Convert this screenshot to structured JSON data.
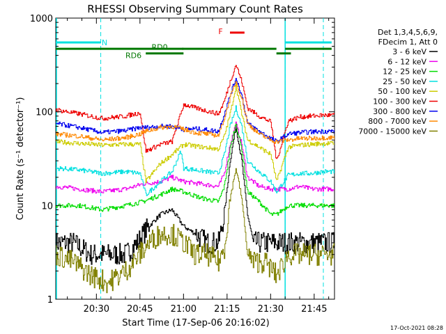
{
  "chart_data": {
    "type": "line",
    "title": "RHESSI Observing Summary Count Rates",
    "xlabel": "Start Time (17-Sep-06 20:16:02)",
    "ylabel": "Count Rate (s⁻¹ detector⁻¹)",
    "yscale": "log",
    "ylim": [
      1,
      1000
    ],
    "xlim_minutes": [
      0,
      96
    ],
    "x_unit": "minutes after 20:16:02",
    "y_ticks": [
      "1",
      "10",
      "100",
      "1000"
    ],
    "x_ticks": [
      "20:30",
      "20:45",
      "21:00",
      "21:15",
      "21:30",
      "21:45"
    ],
    "x_tick_minutes": [
      14,
      29,
      44,
      59,
      74,
      89
    ],
    "footer_date": "17-Oct-2021 08:28",
    "legend_header": [
      "Det 1,3,4,5,6,9,",
      "FDecim 1, Att 0"
    ],
    "flags": {
      "N": {
        "label": "N",
        "color": "#00e0e0",
        "segments": [
          [
            0,
            15.5
          ],
          [
            79,
            95
          ]
        ],
        "level": 550,
        "dashed_edges": [
          15.5,
          79
        ]
      },
      "RD0": {
        "label": "RD0",
        "color": "#007700",
        "segments": [
          [
            0,
            44
          ],
          [
            43.5,
            76
          ],
          [
            79,
            95
          ]
        ],
        "level": 470
      },
      "RD6": {
        "label": "RD6",
        "color": "#007700",
        "segments": [
          [
            31,
            44
          ],
          [
            76,
            81
          ]
        ],
        "level": 420
      },
      "F": {
        "label": "F",
        "color": "#ee0000",
        "segments": [
          [
            60,
            65
          ]
        ],
        "level": 700
      }
    },
    "series": [
      {
        "name": "3 - 6 keV",
        "color": "#000000",
        "x": [
          0,
          6,
          12,
          18,
          24,
          28,
          32,
          36,
          40,
          44,
          48,
          52,
          56,
          58,
          60,
          62,
          64,
          66,
          68,
          72,
          76,
          80,
          84,
          88,
          92,
          95
        ],
        "y": [
          4,
          4,
          3,
          3,
          3,
          4,
          6,
          8,
          9,
          6,
          5,
          4,
          4,
          8,
          30,
          70,
          30,
          8,
          4,
          4,
          4,
          4,
          4,
          4,
          4,
          4
        ]
      },
      {
        "name": "6 - 12 keV",
        "color": "#ee00ee",
        "x": [
          0,
          8,
          16,
          24,
          30,
          36,
          40,
          44,
          50,
          56,
          58,
          60,
          62,
          64,
          66,
          70,
          74,
          76,
          80,
          84,
          88,
          92,
          95
        ],
        "y": [
          16,
          15,
          14,
          15,
          17,
          18,
          20,
          18,
          17,
          16,
          22,
          45,
          75,
          45,
          20,
          16,
          15,
          15,
          15,
          16,
          15,
          15,
          15
        ]
      },
      {
        "name": "12 - 25 keV",
        "color": "#00dd00",
        "x": [
          0,
          8,
          16,
          24,
          30,
          36,
          40,
          44,
          50,
          56,
          58,
          60,
          62,
          64,
          66,
          70,
          74,
          76,
          80,
          84,
          88,
          92,
          95
        ],
        "y": [
          10,
          10,
          9,
          10,
          11,
          13,
          15,
          14,
          12,
          11,
          16,
          40,
          75,
          40,
          14,
          11,
          8,
          8,
          10,
          10,
          10,
          10,
          10
        ]
      },
      {
        "name": "25 - 50 keV",
        "color": "#00e0e0",
        "x": [
          0,
          8,
          16,
          24,
          29,
          31,
          36,
          40,
          43,
          44,
          48,
          56,
          58,
          60,
          62,
          64,
          66,
          70,
          74,
          76,
          80,
          84,
          88,
          92,
          95
        ],
        "y": [
          25,
          24,
          22,
          23,
          22,
          13,
          18,
          23,
          38,
          25,
          24,
          22,
          35,
          70,
          110,
          70,
          30,
          23,
          18,
          14,
          21,
          22,
          22,
          23,
          23
        ]
      },
      {
        "name": "50 - 100 keV",
        "color": "#cccc00",
        "x": [
          0,
          8,
          16,
          24,
          29,
          31,
          36,
          40,
          44,
          48,
          56,
          58,
          60,
          62,
          64,
          66,
          70,
          74,
          76,
          80,
          84,
          88,
          92,
          95
        ],
        "y": [
          48,
          46,
          44,
          45,
          45,
          18,
          28,
          35,
          45,
          43,
          40,
          55,
          95,
          190,
          95,
          50,
          42,
          35,
          18,
          42,
          44,
          45,
          46,
          46
        ]
      },
      {
        "name": "100 - 300 keV",
        "color": "#ee0000",
        "x": [
          0,
          8,
          16,
          24,
          29,
          31,
          36,
          40,
          44,
          48,
          56,
          58,
          60,
          62,
          64,
          66,
          70,
          74,
          76,
          80,
          84,
          88,
          92,
          95
        ],
        "y": [
          105,
          95,
          85,
          90,
          98,
          38,
          45,
          48,
          120,
          110,
          95,
          130,
          210,
          320,
          210,
          110,
          90,
          78,
          30,
          80,
          88,
          90,
          92,
          92
        ]
      },
      {
        "name": "300 - 800 keV",
        "color": "#0000ee",
        "x": [
          0,
          8,
          16,
          24,
          29,
          31,
          36,
          40,
          44,
          48,
          56,
          58,
          60,
          62,
          64,
          66,
          70,
          74,
          76,
          80,
          84,
          88,
          92,
          95
        ],
        "y": [
          75,
          68,
          60,
          63,
          68,
          68,
          70,
          70,
          65,
          66,
          62,
          95,
          150,
          230,
          150,
          75,
          62,
          52,
          48,
          58,
          60,
          61,
          62,
          62
        ]
      },
      {
        "name": "800 - 7000 keV",
        "color": "#ff8800",
        "x": [
          0,
          8,
          16,
          24,
          29,
          31,
          36,
          40,
          44,
          48,
          56,
          58,
          60,
          62,
          64,
          66,
          70,
          74,
          76,
          80,
          84,
          88,
          92,
          95
        ],
        "y": [
          58,
          55,
          50,
          53,
          58,
          62,
          68,
          70,
          65,
          60,
          56,
          85,
          140,
          210,
          140,
          75,
          58,
          50,
          48,
          50,
          52,
          52,
          53,
          53
        ]
      },
      {
        "name": "7000 - 15000 keV",
        "color": "#808000",
        "x": [
          0,
          6,
          12,
          18,
          24,
          28,
          32,
          36,
          40,
          44,
          48,
          52,
          56,
          58,
          60,
          62,
          64,
          66,
          68,
          72,
          76,
          80,
          84,
          88,
          92,
          95
        ],
        "y": [
          3,
          2.5,
          1.8,
          1.5,
          2,
          2.8,
          4,
          5,
          5,
          4,
          3,
          3,
          2.5,
          3.5,
          12,
          25,
          12,
          3,
          2.5,
          2.5,
          1.8,
          3,
          3,
          3,
          3,
          3
        ]
      }
    ]
  }
}
